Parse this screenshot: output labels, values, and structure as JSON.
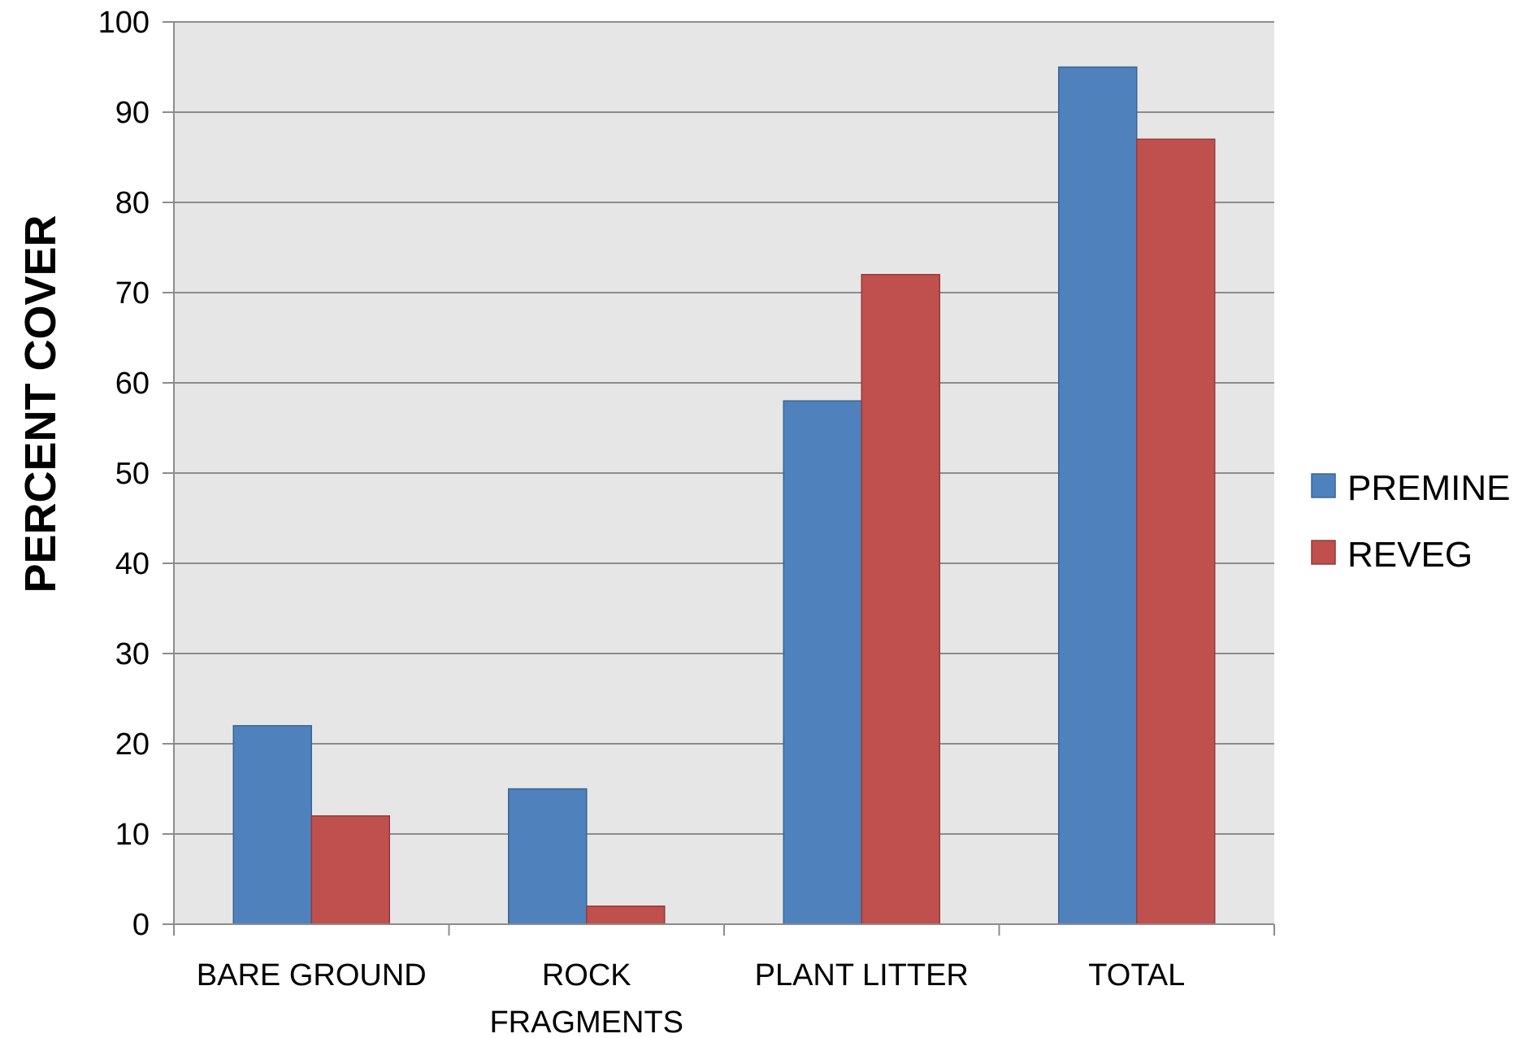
{
  "chart_data": {
    "type": "bar",
    "title": "",
    "xlabel": "",
    "ylabel": "PERCENT COVER",
    "ylim": [
      0,
      100
    ],
    "yticks": [
      0,
      10,
      20,
      30,
      40,
      50,
      60,
      70,
      80,
      90,
      100
    ],
    "ytick_labels": [
      "0",
      "10",
      "20",
      "30",
      "40",
      "50",
      "60",
      "70",
      "80",
      "90",
      "100"
    ],
    "categories": [
      [
        "BARE GROUND"
      ],
      [
        "ROCK",
        "FRAGMENTS"
      ],
      [
        "PLANT LITTER"
      ],
      [
        "TOTAL"
      ]
    ],
    "series": [
      {
        "name": "PREMINE",
        "color": "#4F81BD",
        "values": [
          22,
          15,
          58,
          95
        ]
      },
      {
        "name": "REVEG",
        "color": "#C0504D",
        "values": [
          12,
          2,
          72,
          87
        ]
      }
    ],
    "grid": true,
    "plot_background": "#E6E6E6",
    "legend_position": "right"
  }
}
